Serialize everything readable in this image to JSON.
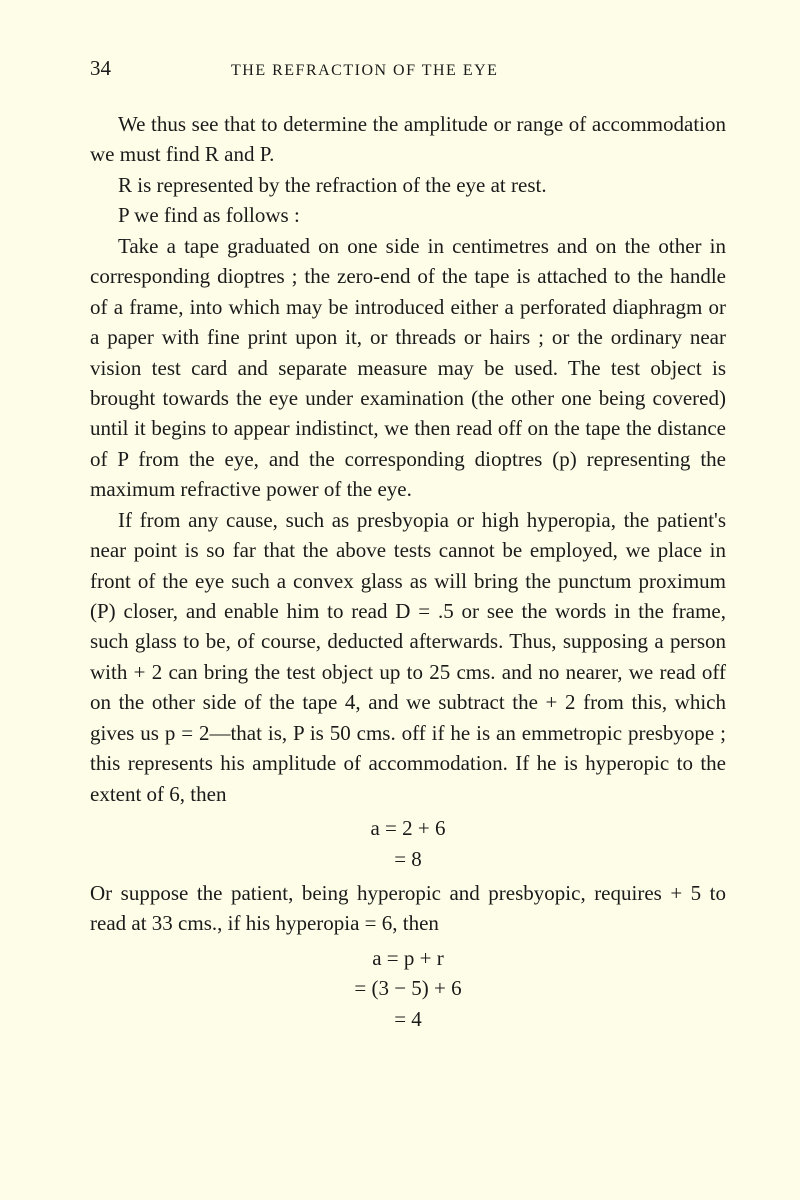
{
  "header": {
    "page_number": "34",
    "running_title": "THE REFRACTION OF THE EYE"
  },
  "paragraphs": {
    "p1": "We thus see that to determine the amplitude or range of accommodation we must find R and P.",
    "p2": "R is represented by the refraction of the eye at rest.",
    "p3": "P we find as follows :",
    "p4": "Take a tape graduated on one side in centimetres and on the other in corresponding dioptres ; the zero-end of the tape is attached to the handle of a frame, into which may be introduced either a perforated diaphragm or a paper with fine print upon it, or threads or hairs ; or the ordinary near vision test card and separate measure may be used. The test object is brought towards the eye under examination (the other one being covered) until it begins to appear indistinct, we then read off on the tape the distance of P from the eye, and the corresponding dioptres (p) representing the maximum refractive power of the eye.",
    "p5": "If from any cause, such as presbyopia or high hyperopia, the patient's near point is so far that the above tests cannot be employed, we place in front of the eye such a convex glass as will bring the punctum proximum (P) closer, and enable him to read D = .5 or see the words in the frame, such glass to be, of course, deducted afterwards. Thus, supposing a person with + 2 can bring the test object up to 25 cms. and no nearer, we read off on the other side of the tape 4, and we subtract the + 2 from this, which gives us p = 2—that is, P is 50 cms. off if he is an emmetropic presbyope ; this represents his amplitude of accommodation. If he is hyperopic to the extent of 6, then",
    "p6": "Or suppose the patient, being hyperopic and presbyopic, requires + 5 to read at 33 cms., if his hyperopia = 6, then"
  },
  "equations": {
    "eq1_line1": "a = 2 + 6",
    "eq1_line2": "= 8",
    "eq2_line1": "a = p + r",
    "eq2_line2": "= (3 − 5) + 6",
    "eq2_line3": "= 4"
  }
}
